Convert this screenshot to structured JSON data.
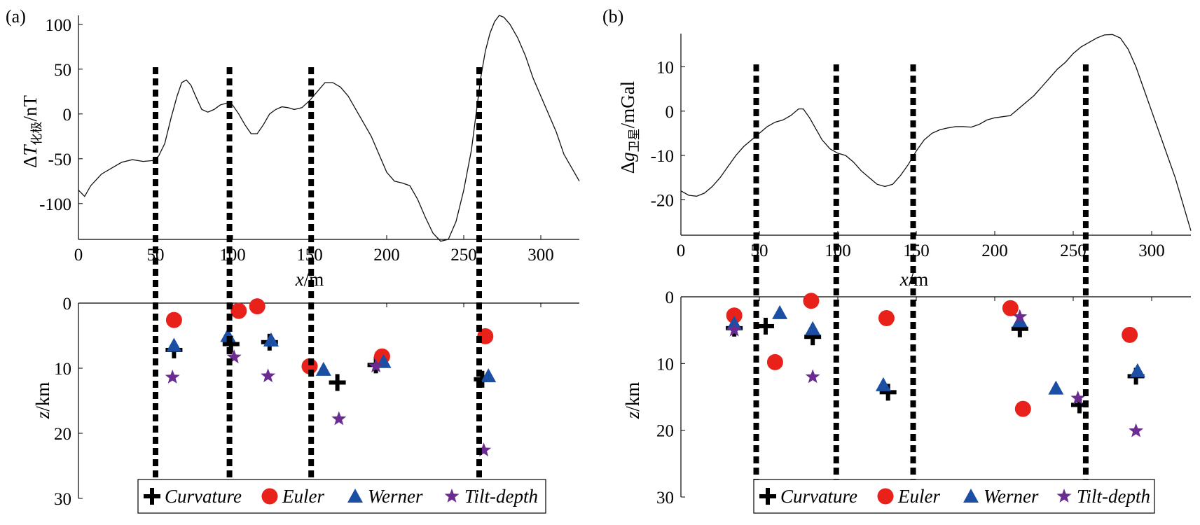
{
  "chart_data": [
    {
      "panel_label": "(a)",
      "type": "line",
      "ylabel_parts": {
        "delta": "Δ",
        "var": "T",
        "sub": "化极",
        "unit": "/nT"
      },
      "xlabel_parts": {
        "var": "x",
        "unit": "/m"
      },
      "zlabel_parts": {
        "var": "z",
        "unit": "/km"
      },
      "xlim": [
        0,
        325
      ],
      "ylim": [
        -140,
        110
      ],
      "xticks": [
        "0",
        "50",
        "100",
        "150",
        "200",
        "250",
        "300"
      ],
      "yticks": [
        "100",
        "50",
        "0",
        "-50",
        "-100"
      ],
      "zlim": [
        0,
        30
      ],
      "zticks": [
        "0",
        "10",
        "20",
        "30"
      ],
      "profile": {
        "x": [
          0,
          4,
          8,
          15,
          22,
          28,
          35,
          42,
          48,
          52,
          56,
          60,
          64,
          67,
          70,
          73,
          76,
          80,
          84,
          88,
          92,
          96,
          100,
          104,
          108,
          112,
          116,
          120,
          124,
          128,
          132,
          136,
          140,
          145,
          150,
          155,
          160,
          165,
          170,
          175,
          180,
          185,
          190,
          195,
          200,
          205,
          210,
          215,
          220,
          225,
          230,
          235,
          240,
          245,
          250,
          255,
          258,
          261,
          264,
          267,
          270,
          273,
          276,
          280,
          285,
          290,
          295,
          300,
          305,
          310,
          315,
          320,
          325
        ],
        "y": [
          -85,
          -92,
          -80,
          -67,
          -60,
          -54,
          -51,
          -53,
          -52,
          -47,
          -33,
          -5,
          20,
          35,
          38,
          32,
          20,
          5,
          2,
          5,
          10,
          12,
          10,
          0,
          -12,
          -22,
          -22,
          -12,
          0,
          5,
          8,
          7,
          5,
          7,
          15,
          25,
          35,
          35,
          30,
          20,
          5,
          -10,
          -25,
          -45,
          -65,
          -75,
          -77,
          -80,
          -95,
          -115,
          -133,
          -142,
          -140,
          -120,
          -85,
          -40,
          0,
          40,
          70,
          90,
          103,
          110,
          108,
          100,
          85,
          65,
          40,
          20,
          0,
          -20,
          -45,
          -60,
          -75
        ]
      },
      "boundaries_x": [
        50,
        98,
        151,
        260
      ],
      "series": [
        {
          "name": "Curvature",
          "points": [
            [
              62,
              7.2
            ],
            [
              99,
              6.3
            ],
            [
              124,
              6
            ],
            [
              168,
              12.2
            ],
            [
              193,
              9.5
            ],
            [
              262,
              11.7
            ]
          ]
        },
        {
          "name": "Euler",
          "points": [
            [
              62,
              2.6
            ],
            [
              104,
              1.2
            ],
            [
              116,
              0.5
            ],
            [
              150,
              9.7
            ],
            [
              197,
              8.2
            ],
            [
              264,
              5.1
            ]
          ]
        },
        {
          "name": "Werner",
          "points": [
            [
              62,
              6.5
            ],
            [
              97,
              5
            ],
            [
              125,
              5.7
            ],
            [
              159,
              10.2
            ],
            [
              198,
              9
            ],
            [
              266,
              11.2
            ]
          ]
        },
        {
          "name": "Tilt-depth",
          "points": [
            [
              61,
              11.4
            ],
            [
              101,
              8.3
            ],
            [
              123,
              11.2
            ],
            [
              169,
              17.8
            ],
            [
              193,
              9.7
            ],
            [
              263,
              22.6
            ]
          ]
        }
      ]
    },
    {
      "panel_label": "(b)",
      "type": "line",
      "ylabel_parts": {
        "delta": "Δ",
        "var": "g",
        "sub": "卫星",
        "unit": "/mGal"
      },
      "xlabel_parts": {
        "var": "x",
        "unit": "/m"
      },
      "zlabel_parts": {
        "var": "z",
        "unit": "/km"
      },
      "xlim": [
        0,
        325
      ],
      "ylim": [
        -28,
        17.5
      ],
      "xticks": [
        "0",
        "50",
        "100",
        "150",
        "200",
        "250",
        "300"
      ],
      "yticks": [
        "10",
        "0",
        "-10",
        "-20"
      ],
      "zlim": [
        0,
        30
      ],
      "zticks": [
        "0",
        "10",
        "20",
        "30"
      ],
      "profile": {
        "x": [
          0,
          5,
          10,
          15,
          20,
          25,
          30,
          35,
          40,
          45,
          50,
          55,
          60,
          65,
          70,
          75,
          78,
          82,
          86,
          90,
          95,
          100,
          105,
          110,
          115,
          120,
          125,
          130,
          135,
          140,
          145,
          150,
          155,
          160,
          165,
          170,
          175,
          180,
          185,
          190,
          195,
          200,
          210,
          215,
          220,
          225,
          230,
          235,
          240,
          245,
          250,
          255,
          260,
          265,
          270,
          275,
          280,
          285,
          290,
          295,
          300,
          305,
          310,
          315,
          320,
          325
        ],
        "y": [
          -18,
          -19,
          -19.2,
          -18.5,
          -17,
          -15,
          -12.5,
          -10,
          -8,
          -6.5,
          -5,
          -3.5,
          -2.5,
          -2,
          -1,
          0.5,
          0.5,
          -1.5,
          -4,
          -6.5,
          -8.5,
          -9.5,
          -10,
          -11.5,
          -13.5,
          -15,
          -16.5,
          -17,
          -16.5,
          -14.5,
          -12,
          -9,
          -6.5,
          -5,
          -4.2,
          -3.8,
          -3.5,
          -3.5,
          -3.6,
          -3,
          -2,
          -1.5,
          -1,
          0.5,
          2,
          3.5,
          5.5,
          7.5,
          9.5,
          11,
          13,
          14.5,
          15.5,
          16.5,
          17.2,
          17.3,
          16.5,
          14,
          10,
          5,
          0,
          -5,
          -10,
          -15,
          -21,
          -27
        ]
      },
      "boundaries_x": [
        48,
        99,
        148,
        258
      ],
      "series": [
        {
          "name": "Curvature",
          "points": [
            [
              34,
              4.7
            ],
            [
              54,
              4.4
            ],
            [
              84,
              6
            ],
            [
              132,
              14.3
            ],
            [
              216,
              4.8
            ],
            [
              254,
              16.2
            ],
            [
              290,
              11.9
            ]
          ]
        },
        {
          "name": "Euler",
          "points": [
            [
              34,
              2.8
            ],
            [
              60,
              9.8
            ],
            [
              83,
              0.6
            ],
            [
              131,
              3.2
            ],
            [
              210,
              1.7
            ],
            [
              218,
              16.8
            ],
            [
              286,
              5.7
            ]
          ]
        },
        {
          "name": "Werner",
          "points": [
            [
              34,
              4
            ],
            [
              63,
              2.4
            ],
            [
              84,
              4.8
            ],
            [
              129,
              13.2
            ],
            [
              216,
              3.6
            ],
            [
              239,
              13.7
            ],
            [
              291,
              11.1
            ]
          ]
        },
        {
          "name": "Tilt-depth",
          "points": [
            [
              34,
              5
            ],
            [
              84,
              12
            ],
            [
              216,
              3
            ],
            [
              253,
              15.2
            ],
            [
              290,
              20.1
            ]
          ]
        }
      ]
    }
  ],
  "legend": {
    "items": [
      {
        "label": "Curvature",
        "color": "#000000",
        "symbol": "plus"
      },
      {
        "label": "Euler",
        "color": "#e8221b",
        "symbol": "circle"
      },
      {
        "label": "Werner",
        "color": "#1a4fa3",
        "symbol": "triangle"
      },
      {
        "label": "Tilt-depth",
        "color": "#6a2c91",
        "symbol": "star"
      }
    ]
  }
}
